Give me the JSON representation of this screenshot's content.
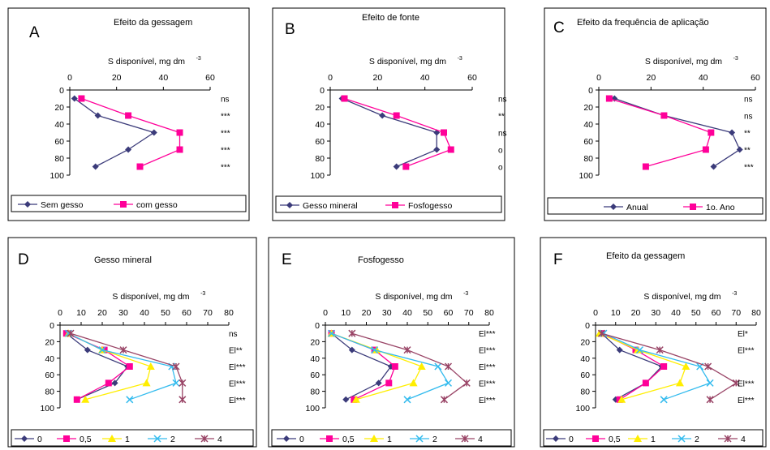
{
  "chart_data": [
    {
      "letter": "A",
      "type": "line",
      "title": "Efeito da gessagem",
      "xlabel": "S disponível, mg dm",
      "xlabel_sup": "-3",
      "xlim": [
        0,
        60
      ],
      "xticks": [
        0,
        20,
        40,
        60
      ],
      "ylim": [
        0,
        100
      ],
      "yticks": [
        0,
        20,
        40,
        60,
        80,
        100
      ],
      "y": [
        10,
        30,
        50,
        70,
        90
      ],
      "significance": [
        "ns",
        "***",
        "***",
        "***",
        "***"
      ],
      "series": [
        {
          "name": "Sem gesso",
          "color": "#3b3b7a",
          "marker": "diamond",
          "values": [
            2,
            12,
            36,
            25,
            11
          ]
        },
        {
          "name": "com gesso",
          "color": "#ff0099",
          "marker": "square",
          "values": [
            5,
            25,
            47,
            47,
            30
          ]
        }
      ]
    },
    {
      "letter": "B",
      "type": "line",
      "title": "Efeito de fonte",
      "xlabel": "S disponível, mg dm",
      "xlabel_sup": "-3",
      "xlim": [
        0,
        60
      ],
      "xticks": [
        0,
        20,
        40,
        60
      ],
      "ylim": [
        0,
        100
      ],
      "yticks": [
        0,
        20,
        40,
        60,
        80,
        100
      ],
      "y": [
        10,
        30,
        50,
        70,
        90
      ],
      "significance": [
        "ns",
        "**",
        "ns",
        "o",
        "o"
      ],
      "series": [
        {
          "name": "Gesso mineral",
          "color": "#3b3b7a",
          "marker": "diamond",
          "values": [
            5,
            22,
            45,
            45,
            28
          ]
        },
        {
          "name": "Fosfogesso",
          "color": "#ff0099",
          "marker": "square",
          "values": [
            6,
            28,
            48,
            51,
            32
          ]
        }
      ]
    },
    {
      "letter": "C",
      "type": "line",
      "title": "Efeito da frequência de aplicação",
      "xlabel": "S disponível, mg dm",
      "xlabel_sup": "-3",
      "xlim": [
        0,
        60
      ],
      "xticks": [
        0,
        20,
        40,
        60
      ],
      "ylim": [
        0,
        100
      ],
      "yticks": [
        0,
        20,
        40,
        60,
        80,
        100
      ],
      "y": [
        10,
        30,
        50,
        70,
        90
      ],
      "significance": [
        "ns",
        "ns",
        "**",
        "**",
        "***"
      ],
      "series": [
        {
          "name": "Anual",
          "color": "#3b3b7a",
          "marker": "diamond",
          "values": [
            6,
            25,
            51,
            54,
            44
          ]
        },
        {
          "name": "1o. Ano",
          "color": "#ff0099",
          "marker": "square",
          "values": [
            4,
            25,
            43,
            41,
            18
          ]
        }
      ]
    },
    {
      "letter": "D",
      "type": "line",
      "title": "Gesso mineral",
      "xlabel": "S disponível, mg dm",
      "xlabel_sup": "-3",
      "xlim": [
        0,
        80
      ],
      "xticks": [
        0,
        10,
        20,
        30,
        40,
        50,
        60,
        70,
        80
      ],
      "ylim": [
        0,
        100
      ],
      "yticks": [
        0,
        20,
        40,
        60,
        80,
        100
      ],
      "y": [
        10,
        30,
        50,
        70,
        90
      ],
      "significance": [
        "ns",
        "El**",
        "El***",
        "El***",
        "El***"
      ],
      "series": [
        {
          "name": "0",
          "color": "#3b3b7a",
          "marker": "diamond",
          "values": [
            3,
            13,
            32,
            26,
            8
          ]
        },
        {
          "name": "0,5",
          "color": "#ff0099",
          "marker": "square",
          "values": [
            3,
            21,
            33,
            23,
            8
          ]
        },
        {
          "name": "1",
          "color": "#ffee00",
          "marker": "triangle",
          "values": [
            4,
            20,
            43,
            41,
            12
          ]
        },
        {
          "name": "2",
          "color": "#33bbee",
          "marker": "x",
          "values": [
            4,
            20,
            53,
            55,
            33
          ]
        },
        {
          "name": "4",
          "color": "#994466",
          "marker": "star",
          "values": [
            5,
            30,
            55,
            58,
            58
          ]
        }
      ]
    },
    {
      "letter": "E",
      "type": "line",
      "title": "Fosfogesso",
      "xlabel": "S disponível, mg dm",
      "xlabel_sup": "-3",
      "xlim": [
        0,
        80
      ],
      "xticks": [
        0,
        10,
        20,
        30,
        40,
        50,
        60,
        70,
        80
      ],
      "ylim": [
        0,
        100
      ],
      "yticks": [
        0,
        20,
        40,
        60,
        80,
        100
      ],
      "y": [
        10,
        30,
        50,
        70,
        90
      ],
      "significance": [
        "El***",
        "El***",
        "El***",
        "El***",
        "El***"
      ],
      "series": [
        {
          "name": "0",
          "color": "#3b3b7a",
          "marker": "diamond",
          "values": [
            3,
            13,
            32,
            26,
            10
          ]
        },
        {
          "name": "0,5",
          "color": "#ff0099",
          "marker": "square",
          "values": [
            3,
            24,
            34,
            31,
            14
          ]
        },
        {
          "name": "1",
          "color": "#ffee00",
          "marker": "triangle",
          "values": [
            3,
            25,
            47,
            43,
            15
          ]
        },
        {
          "name": "2",
          "color": "#33bbee",
          "marker": "x",
          "values": [
            3,
            24,
            55,
            60,
            40
          ]
        },
        {
          "name": "4",
          "color": "#994466",
          "marker": "star",
          "values": [
            13,
            40,
            60,
            69,
            58
          ]
        }
      ]
    },
    {
      "letter": "F",
      "type": "line",
      "title": "Efeito da gessagem",
      "xlabel": "S disponível, mg dm",
      "xlabel_sup": "-3",
      "xlim": [
        0,
        80
      ],
      "xticks": [
        0,
        10,
        20,
        30,
        40,
        50,
        60,
        70,
        80
      ],
      "ylim": [
        0,
        100
      ],
      "yticks": [
        0,
        20,
        40,
        60,
        80,
        100
      ],
      "y": [
        10,
        30,
        50,
        70,
        90
      ],
      "significance": [
        "El*",
        "El***",
        "",
        "El***",
        "El***"
      ],
      "series": [
        {
          "name": "0",
          "color": "#3b3b7a",
          "marker": "diamond",
          "values": [
            3,
            12,
            33,
            25,
            10
          ]
        },
        {
          "name": "0,5",
          "color": "#ff0099",
          "marker": "square",
          "values": [
            3,
            20,
            34,
            25,
            12
          ]
        },
        {
          "name": "1",
          "color": "#ffee00",
          "marker": "triangle",
          "values": [
            2,
            21,
            45,
            42,
            13
          ]
        },
        {
          "name": "2",
          "color": "#33bbee",
          "marker": "x",
          "values": [
            4,
            22,
            52,
            57,
            34
          ]
        },
        {
          "name": "4",
          "color": "#994466",
          "marker": "star",
          "values": [
            3,
            32,
            56,
            70,
            57
          ]
        }
      ]
    }
  ]
}
